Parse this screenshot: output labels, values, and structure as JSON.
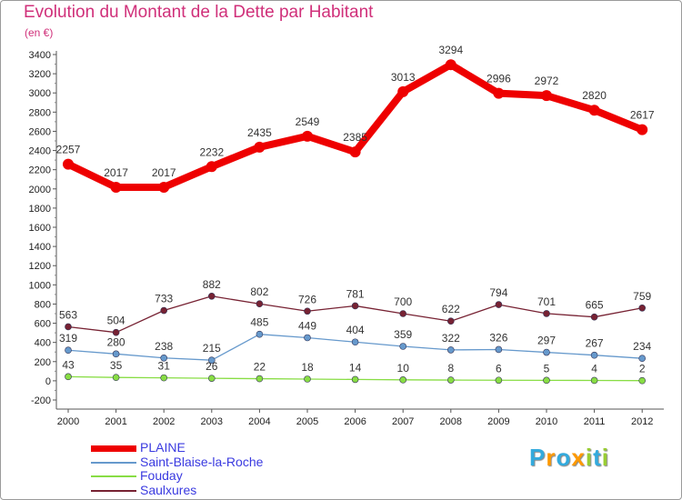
{
  "chart_data": {
    "type": "line",
    "title": "Evolution du Montant de la Dette par Habitant",
    "unit": "(en €)",
    "x": [
      "2000",
      "2001",
      "2002",
      "2003",
      "2004",
      "2005",
      "2006",
      "2007",
      "2008",
      "2009",
      "2010",
      "2011",
      "2012"
    ],
    "ylim": [
      -200,
      3400
    ],
    "yticks": [
      -200,
      0,
      200,
      400,
      600,
      800,
      1000,
      1200,
      1400,
      1600,
      1800,
      2000,
      2200,
      2400,
      2600,
      2800,
      3000,
      3200,
      3400
    ],
    "grid": false,
    "legend": "bottom-left",
    "series": [
      {
        "name": "PLAINE",
        "color": "#ee0000",
        "values": [
          2257,
          2017,
          2017,
          2232,
          2435,
          2549,
          2385,
          3013,
          3294,
          2996,
          2972,
          2820,
          2617
        ]
      },
      {
        "name": "Saint-Blaise-la-Roche",
        "color": "#6699cc",
        "values": [
          319,
          280,
          238,
          215,
          485,
          449,
          404,
          359,
          322,
          326,
          297,
          267,
          234
        ]
      },
      {
        "name": "Fouday",
        "color": "#88dd44",
        "values": [
          43,
          35,
          31,
          26,
          22,
          18,
          14,
          10,
          8,
          6,
          5,
          4,
          2
        ]
      },
      {
        "name": "Saulxures",
        "color": "#772233",
        "values": [
          563,
          504,
          733,
          882,
          802,
          726,
          781,
          700,
          622,
          794,
          701,
          665,
          759
        ]
      }
    ]
  },
  "logo": {
    "letters": [
      "P",
      "r",
      "o",
      "x",
      "i",
      "t",
      "i"
    ],
    "colors": [
      "#33aadd",
      "#ff9900",
      "#33aadd",
      "#ff9900",
      "#99cc33",
      "#33aadd",
      "#99cc33"
    ]
  }
}
